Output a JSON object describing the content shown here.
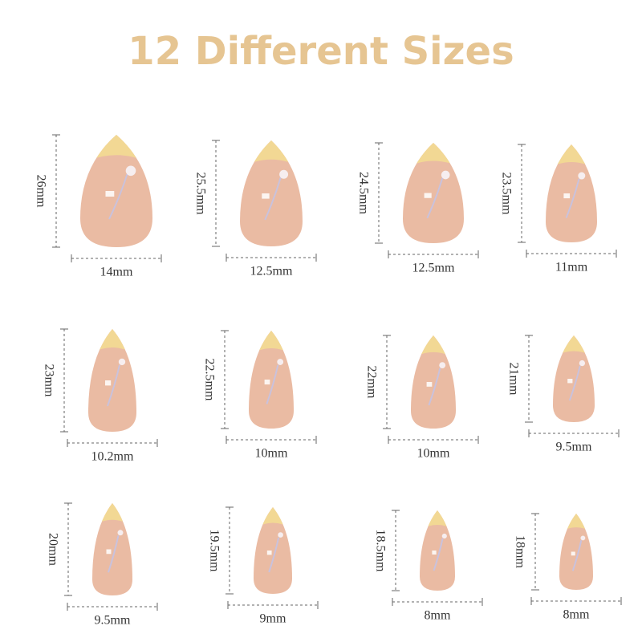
{
  "title": "12 Different Sizes",
  "nails": [
    {
      "length": "26mm",
      "width": "14mm"
    },
    {
      "length": "25.5mm",
      "width": "12.5mm"
    },
    {
      "length": "24.5mm",
      "width": "12.5mm"
    },
    {
      "length": "23.5mm",
      "width": "11mm"
    },
    {
      "length": "23mm",
      "width": "10.2mm"
    },
    {
      "length": "22.5mm",
      "width": "10mm"
    },
    {
      "length": "22mm",
      "width": "10mm"
    },
    {
      "length": "21mm",
      "width": "9.5mm"
    },
    {
      "length": "20mm",
      "width": "9.5mm"
    },
    {
      "length": "19.5mm",
      "width": "9mm"
    },
    {
      "length": "18.5mm",
      "width": "8mm"
    },
    {
      "length": "18mm",
      "width": "8mm"
    }
  ]
}
